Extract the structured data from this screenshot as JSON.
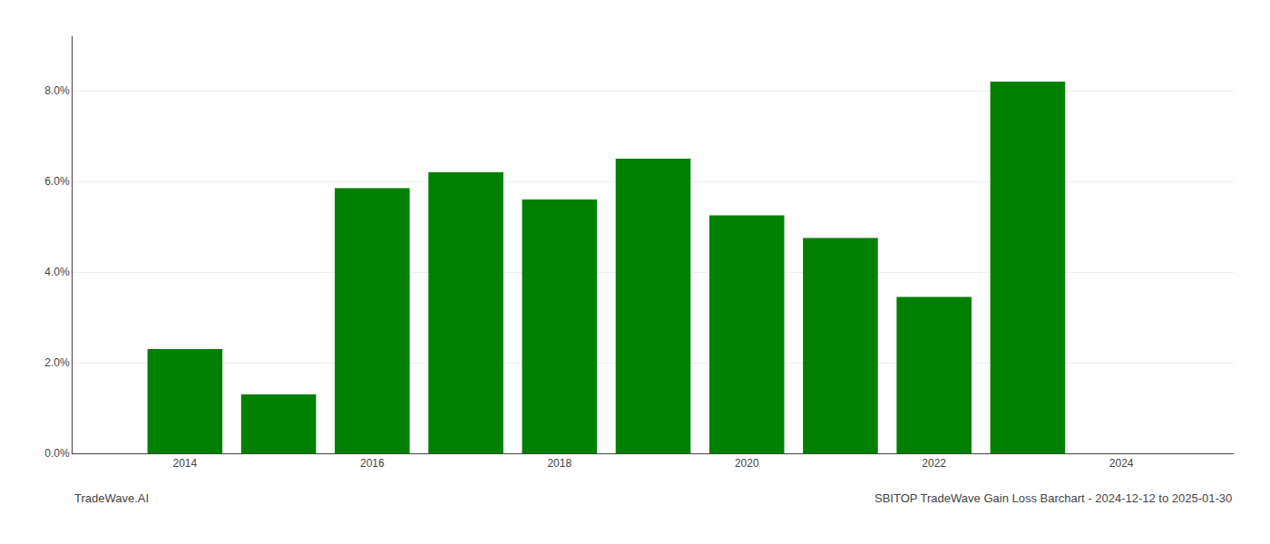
{
  "chart_data": {
    "type": "bar",
    "x": [
      2014,
      2015,
      2016,
      2017,
      2018,
      2019,
      2020,
      2021,
      2022,
      2023
    ],
    "values": [
      0.023,
      0.013,
      0.0585,
      0.062,
      0.056,
      0.065,
      0.0525,
      0.0475,
      0.0345,
      0.082
    ],
    "color": "#008000",
    "xlim": [
      2012.8,
      2025.2
    ],
    "xticks": [
      2014,
      2016,
      2018,
      2020,
      2022,
      2024
    ],
    "ylim": [
      0,
      0.092
    ],
    "yticks": [
      {
        "value": 0.0,
        "label": "0.0%"
      },
      {
        "value": 0.02,
        "label": "2.0%"
      },
      {
        "value": 0.04,
        "label": "4.0%"
      },
      {
        "value": 0.06,
        "label": "6.0%"
      },
      {
        "value": 0.08,
        "label": "8.0%"
      }
    ],
    "grid": true,
    "annotations": [
      "TradeWave.AI",
      "SBITOP TradeWave Gain Loss Barchart - 2024-12-12 to 2025-01-30"
    ]
  }
}
